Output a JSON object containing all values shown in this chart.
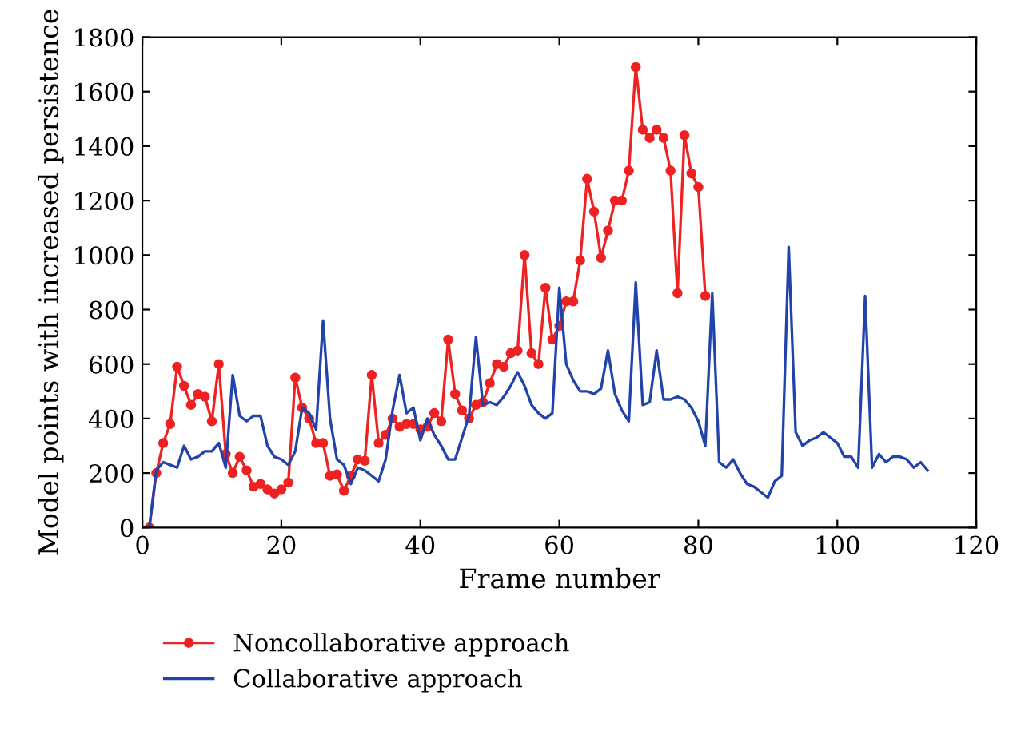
{
  "chart_data": {
    "type": "line",
    "xlabel": "Frame number",
    "ylabel": "Model points with increased persistence",
    "xlim": [
      0,
      120
    ],
    "xticks": [
      0,
      20,
      40,
      60,
      80,
      100,
      120
    ],
    "ylim": [
      0,
      1800
    ],
    "yticks": [
      0,
      200,
      400,
      600,
      800,
      1000,
      1200,
      1400,
      1600,
      1800
    ],
    "grid": false,
    "legend": "bottom",
    "series": [
      {
        "name": "Noncollaborative approach",
        "color": "#ee2222",
        "marker": "circle",
        "x": [
          1,
          2,
          3,
          4,
          5,
          6,
          7,
          8,
          9,
          10,
          11,
          12,
          13,
          14,
          15,
          16,
          17,
          18,
          19,
          20,
          21,
          22,
          23,
          24,
          25,
          26,
          27,
          28,
          29,
          30,
          31,
          32,
          33,
          34,
          35,
          36,
          37,
          38,
          39,
          40,
          41,
          42,
          43,
          44,
          45,
          46,
          47,
          48,
          49,
          50,
          51,
          52,
          53,
          54,
          55,
          56,
          57,
          58,
          59,
          60,
          61,
          62,
          63,
          64,
          65,
          66,
          67,
          68,
          69,
          70,
          71,
          72,
          73,
          74,
          75,
          76,
          77,
          78,
          79,
          80,
          81
        ],
        "values": [
          0,
          200,
          310,
          380,
          590,
          520,
          450,
          490,
          480,
          390,
          600,
          270,
          200,
          260,
          210,
          150,
          160,
          140,
          125,
          140,
          165,
          550,
          440,
          400,
          310,
          310,
          190,
          195,
          135,
          190,
          250,
          245,
          560,
          310,
          340,
          400,
          370,
          380,
          380,
          360,
          370,
          420,
          390,
          690,
          490,
          430,
          400,
          450,
          460,
          530,
          600,
          590,
          640,
          650,
          1000,
          640,
          600,
          880,
          690,
          740,
          830,
          830,
          980,
          1280,
          1160,
          990,
          1090,
          1200,
          1200,
          1310,
          1690,
          1460,
          1430,
          1460,
          1430,
          1310,
          860,
          1440,
          1300,
          1250,
          850
        ]
      },
      {
        "name": "Collaborative approach",
        "color": "#2244aa",
        "marker": "none",
        "x": [
          1,
          2,
          3,
          4,
          5,
          6,
          7,
          8,
          9,
          10,
          11,
          12,
          13,
          14,
          15,
          16,
          17,
          18,
          19,
          20,
          21,
          22,
          23,
          24,
          25,
          26,
          27,
          28,
          29,
          30,
          31,
          32,
          33,
          34,
          35,
          36,
          37,
          38,
          39,
          40,
          41,
          42,
          43,
          44,
          45,
          46,
          47,
          48,
          49,
          50,
          51,
          52,
          53,
          54,
          55,
          56,
          57,
          58,
          59,
          60,
          61,
          62,
          63,
          64,
          65,
          66,
          67,
          68,
          69,
          70,
          71,
          72,
          73,
          74,
          75,
          76,
          77,
          78,
          79,
          80,
          81,
          82,
          83,
          84,
          85,
          86,
          87,
          88,
          89,
          90,
          91,
          92,
          93,
          94,
          95,
          96,
          97,
          98,
          99,
          100,
          101,
          102,
          103,
          104,
          105,
          106,
          107,
          108,
          109,
          110,
          111,
          112,
          113
        ],
        "values": [
          0,
          210,
          240,
          230,
          220,
          300,
          250,
          260,
          280,
          280,
          310,
          220,
          560,
          410,
          390,
          410,
          410,
          300,
          260,
          250,
          230,
          280,
          440,
          420,
          360,
          760,
          400,
          250,
          230,
          160,
          220,
          210,
          190,
          170,
          250,
          430,
          560,
          420,
          440,
          320,
          400,
          340,
          300,
          250,
          250,
          330,
          410,
          700,
          450,
          460,
          450,
          480,
          520,
          570,
          520,
          450,
          420,
          400,
          420,
          880,
          600,
          540,
          500,
          500,
          490,
          510,
          650,
          490,
          430,
          390,
          900,
          450,
          460,
          650,
          470,
          470,
          480,
          470,
          440,
          390,
          300,
          860,
          240,
          220,
          250,
          200,
          160,
          150,
          130,
          110,
          170,
          190,
          1030,
          350,
          300,
          320,
          330,
          350,
          330,
          310,
          260,
          260,
          220,
          850,
          220,
          270,
          240,
          260,
          260,
          250,
          220,
          240,
          210
        ]
      }
    ]
  }
}
